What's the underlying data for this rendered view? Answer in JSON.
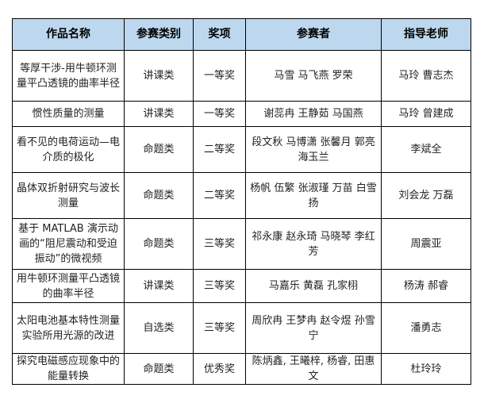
{
  "header": {
    "title": "作品名称",
    "category": "参赛类别",
    "award": "奖项",
    "participants": "参赛者",
    "advisor": "指导老师"
  },
  "header_bg_color": "#bdd7ee",
  "rows": [
    {
      "title": "等厚干涉-用牛顿环测量平凸透镜的曲率半径",
      "category": "讲课类",
      "award": "一等奖",
      "participants": "马雪 马飞燕 罗荣",
      "advisor": "马玲 曹志杰"
    },
    {
      "title": "惯性质量的测量",
      "category": "讲课类",
      "award": "一等奖",
      "participants": "谢蕊冉 王静茹 马国燕",
      "advisor": "马玲 曾建成"
    },
    {
      "title": "看不见的电荷运动—电介质的极化",
      "category": "命题类",
      "award": "二等奖",
      "participants": "段文秋 马博潇 张馨月 郭亮 海玉兰",
      "advisor": "李斌全"
    },
    {
      "title": "晶体双折射研究与波长测量",
      "category": "命题类",
      "award": "二等奖",
      "participants": "杨帆 伍繁 张淑瑾 万苗 白雪扬",
      "advisor": "刘会龙 万磊"
    },
    {
      "title": "基于 MATLAB 演示动画的“阻尼震动和受迫振动”的微视频",
      "category": "命题类",
      "award": "三等奖",
      "participants": "祁永康 赵永琦 马晓琴 李红芳",
      "advisor": "周震亚"
    },
    {
      "title": "用牛顿环测量平凸透镜的曲率半径",
      "category": "讲课类",
      "award": "三等奖",
      "participants": "马嘉乐 黄磊 孔家栩",
      "advisor": "杨涛 郝睿"
    },
    {
      "title": "太阳电池基本特性测量实验所用光源的改进",
      "category": "自选类",
      "award": "三等奖",
      "participants": "周欣冉 王梦冉 赵令煜 孙雪宁",
      "advisor": "潘勇志"
    },
    {
      "title": "探究电磁感应现象中的能量转换",
      "category": "命题类",
      "award": "优秀奖",
      "participants": "陈炳鑫, 王曦梓, 杨睿, 田惠文",
      "advisor": "杜玲玲"
    }
  ]
}
